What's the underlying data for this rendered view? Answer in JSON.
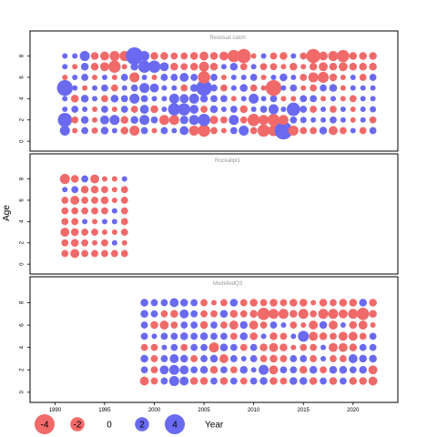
{
  "chart_data": {
    "type": "scatter",
    "subtype": "bubble-residuals",
    "ylabel": "Age",
    "xlabel": "Year",
    "x_range": [
      1988.5,
      2023.5
    ],
    "x_ticks": [
      1990,
      1995,
      2000,
      2005,
      2010,
      2015,
      2020
    ],
    "y_range": [
      -0.5,
      9.5
    ],
    "y_ticks": [
      0,
      2,
      4,
      6,
      8
    ],
    "colors": {
      "negative": "#f06a6a",
      "positive": "#6a6af0",
      "frame": "#000000",
      "panel_title": "#999999"
    },
    "legend": {
      "values": [
        -4,
        -2,
        0,
        2,
        4
      ],
      "labels": [
        "-4",
        "-2",
        "0",
        "2",
        "4"
      ]
    },
    "panels": [
      {
        "title": "Residual catch",
        "years": [
          1991,
          1992,
          1993,
          1994,
          1995,
          1996,
          1997,
          1998,
          1999,
          2000,
          2001,
          2002,
          2003,
          2004,
          2005,
          2006,
          2007,
          2008,
          2009,
          2010,
          2011,
          2012,
          2013,
          2014,
          2015,
          2016,
          2017,
          2018,
          2019,
          2020,
          2021,
          2022
        ],
        "ages": [
          1,
          2,
          3,
          4,
          5,
          6,
          7,
          8
        ],
        "residuals": [
          [
            1.0,
            -0.3,
            0.5,
            -0.4,
            0.6,
            0.3,
            -0.6,
            -1.0,
            0.5,
            -0.3,
            0.5,
            0.3,
            0.8,
            -1.0,
            -1.5,
            -0.5,
            -0.3,
            0.5,
            1.0,
            -0.5,
            -1.5,
            -1.2,
            3.2,
            -1.0,
            -0.5,
            -0.5,
            0.6,
            -0.8,
            -0.5,
            0.3,
            -0.5,
            0.5
          ],
          [
            2.0,
            -0.5,
            0.6,
            -0.3,
            0.8,
            1.0,
            -0.6,
            0.6,
            1.0,
            0.5,
            -1.0,
            -1.0,
            0.7,
            1.0,
            1.5,
            -0.7,
            -0.5,
            1.0,
            -0.5,
            -1.5,
            -1.0,
            -1.5,
            -1.0,
            0.5,
            0.4,
            0.3,
            0.3,
            0.5,
            0.3,
            -0.3,
            0.3,
            -0.5
          ],
          [
            0.3,
            0.5,
            0.3,
            -0.3,
            0.5,
            -0.3,
            0.5,
            -0.5,
            0.8,
            -0.6,
            0.3,
            1.5,
            1.5,
            0.8,
            -0.5,
            0.6,
            0.3,
            0.5,
            -0.6,
            0.3,
            0.5,
            1.0,
            0.3,
            1.8,
            0.5,
            -0.5,
            0.3,
            -0.5,
            0.3,
            -0.3,
            0.3,
            0.4
          ],
          [
            0.3,
            -0.6,
            0.6,
            0.3,
            -0.5,
            0.6,
            0.5,
            1.0,
            0.5,
            0.3,
            0.3,
            1.0,
            0.8,
            1.0,
            0.6,
            0.5,
            0.5,
            -0.3,
            0.3,
            1.0,
            0.3,
            0.5,
            -0.3,
            -0.3,
            0.5,
            0.5,
            -0.3,
            0.3,
            -0.3,
            -0.5,
            0.3,
            0.3
          ],
          [
            2.5,
            0.3,
            -0.3,
            0.3,
            0.5,
            -0.5,
            0.3,
            0.5,
            1.0,
            0.8,
            0.3,
            0.3,
            -0.5,
            0.6,
            2.5,
            0.5,
            -0.5,
            0.3,
            0.6,
            -0.5,
            -0.3,
            -2.5,
            0.3,
            0.5,
            -0.3,
            -0.5,
            0.5,
            0.6,
            -0.3,
            0.3,
            0.3,
            0.3
          ],
          [
            -0.3,
            0.3,
            0.5,
            -0.3,
            0.3,
            -0.3,
            0.5,
            -1.0,
            0.3,
            -0.3,
            0.5,
            0.5,
            0.8,
            0.5,
            -1.5,
            0.5,
            -0.3,
            0.3,
            0.3,
            0.5,
            -0.3,
            0.3,
            0.6,
            0.3,
            -0.5,
            -1.0,
            -1.2,
            -0.6,
            -0.3,
            0.3,
            -0.5,
            0.5
          ],
          [
            0.3,
            -0.3,
            0.6,
            -0.6,
            -0.8,
            -1.5,
            -0.3,
            0.6,
            1.5,
            1.5,
            0.8,
            -0.6,
            -0.5,
            -0.6,
            -1.0,
            -0.6,
            0.3,
            0.6,
            -0.5,
            0.3,
            -0.5,
            -0.5,
            -0.3,
            -0.6,
            -0.3,
            -0.6,
            -0.8,
            -0.6,
            -0.8,
            -0.6,
            -0.6,
            -0.6
          ],
          [
            0.3,
            0.3,
            1.0,
            -0.6,
            -0.8,
            -1.0,
            -1.0,
            3.0,
            1.0,
            -0.6,
            -0.6,
            -0.5,
            -0.5,
            -0.6,
            -0.8,
            -0.6,
            -0.8,
            -1.5,
            -2.0,
            -0.3,
            0.3,
            -0.5,
            -0.6,
            0.3,
            -0.5,
            -2.0,
            -0.8,
            -1.0,
            -1.5,
            -0.6,
            -0.6,
            -0.6
          ]
        ]
      },
      {
        "title": "Rockallpt1",
        "years": [
          1991,
          1992,
          1993,
          1994,
          1995,
          1996,
          1997
        ],
        "ages": [
          1,
          2,
          3,
          4,
          5,
          6,
          7,
          8
        ],
        "residuals": [
          [
            -0.5,
            -0.8,
            -0.5,
            -0.5,
            -0.5,
            -0.5,
            -0.5
          ],
          [
            -0.5,
            -0.6,
            -0.5,
            -0.3,
            -0.5,
            0.3,
            -0.3
          ],
          [
            -0.8,
            -0.6,
            -0.5,
            -0.5,
            -0.3,
            -0.3,
            -0.5
          ],
          [
            -0.5,
            -0.5,
            0.3,
            -0.3,
            0.3,
            0.3,
            -0.5
          ],
          [
            -0.5,
            -0.5,
            -0.5,
            -0.5,
            -0.5,
            0.3,
            -0.5
          ],
          [
            -0.5,
            -0.8,
            -0.5,
            -0.5,
            -0.6,
            -0.3,
            -0.5
          ],
          [
            0.3,
            0.5,
            -0.6,
            -0.6,
            -0.5,
            -0.3,
            -0.5
          ],
          [
            -1.0,
            -0.6,
            0.5,
            -0.8,
            -0.3,
            -0.3,
            0.3
          ]
        ]
      },
      {
        "title": "ModelledQ3",
        "years": [
          1999,
          2000,
          2001,
          2002,
          2003,
          2004,
          2005,
          2006,
          2007,
          2008,
          2009,
          2010,
          2011,
          2012,
          2013,
          2014,
          2015,
          2016,
          2017,
          2018,
          2019,
          2020,
          2021,
          2022
        ],
        "ages": [
          1,
          2,
          3,
          4,
          5,
          6,
          7,
          8
        ],
        "residuals": [
          [
            -0.8,
            -0.5,
            0.5,
            1.0,
            0.8,
            -0.6,
            -0.6,
            0.5,
            -0.6,
            0.5,
            -0.5,
            0.5,
            0.6,
            -0.6,
            -0.5,
            0.6,
            0.6,
            -0.6,
            0.5,
            -0.6,
            0.5,
            -0.6,
            -0.6,
            -0.8
          ],
          [
            0.5,
            -0.5,
            0.8,
            1.0,
            0.8,
            0.5,
            0.6,
            -0.6,
            0.5,
            -0.5,
            0.6,
            0.3,
            1.0,
            -0.8,
            0.5,
            0.5,
            -0.6,
            0.6,
            -0.5,
            0.6,
            0.6,
            0.5,
            0.6,
            -0.8
          ],
          [
            0.6,
            -0.5,
            0.5,
            0.8,
            0.6,
            -0.5,
            0.5,
            0.6,
            -0.8,
            0.5,
            0.3,
            0.5,
            -0.5,
            -0.6,
            -0.5,
            0.5,
            0.5,
            -0.5,
            0.3,
            -0.5,
            -0.5,
            0.8,
            0.6,
            0.6
          ],
          [
            -0.5,
            -0.5,
            0.3,
            0.5,
            -0.5,
            0.5,
            0.5,
            -1.0,
            0.6,
            0.5,
            -0.5,
            0.5,
            -0.6,
            -0.8,
            -0.6,
            -0.3,
            -0.5,
            -0.5,
            0.3,
            -0.8,
            -0.8,
            -0.6,
            0.5,
            0.5
          ],
          [
            0.5,
            0.3,
            0.5,
            0.5,
            0.6,
            0.5,
            0.6,
            0.5,
            0.5,
            -0.5,
            0.6,
            -0.6,
            0.3,
            -0.6,
            -0.5,
            0.3,
            1.2,
            -0.8,
            -0.6,
            -0.5,
            -0.8,
            -0.8,
            -0.5,
            0.5
          ],
          [
            0.5,
            -0.6,
            -0.8,
            -0.5,
            0.5,
            0.5,
            -0.6,
            0.5,
            -0.5,
            -0.8,
            0.6,
            -0.8,
            -0.5,
            0.5,
            0.3,
            -0.5,
            -0.3,
            -0.8,
            0.6,
            -0.8,
            0.3,
            -0.6,
            -0.8,
            -0.3
          ],
          [
            0.6,
            0.5,
            -0.5,
            -0.6,
            0.8,
            0.5,
            -0.5,
            -0.5,
            0.6,
            -0.6,
            -0.5,
            -0.6,
            -1.5,
            -1.0,
            -1.0,
            -0.6,
            -1.0,
            -0.5,
            -1.0,
            -1.0,
            -0.8,
            -1.0,
            -1.5,
            -0.6
          ],
          [
            0.6,
            0.5,
            0.5,
            0.8,
            0.6,
            0.5,
            -0.5,
            -0.3,
            -0.5,
            0.6,
            -0.5,
            -0.6,
            -0.5,
            -0.6,
            -0.5,
            -0.6,
            -0.6,
            -0.3,
            -0.6,
            -0.5,
            -0.6,
            -0.6,
            0.6,
            -0.6
          ]
        ]
      }
    ]
  }
}
